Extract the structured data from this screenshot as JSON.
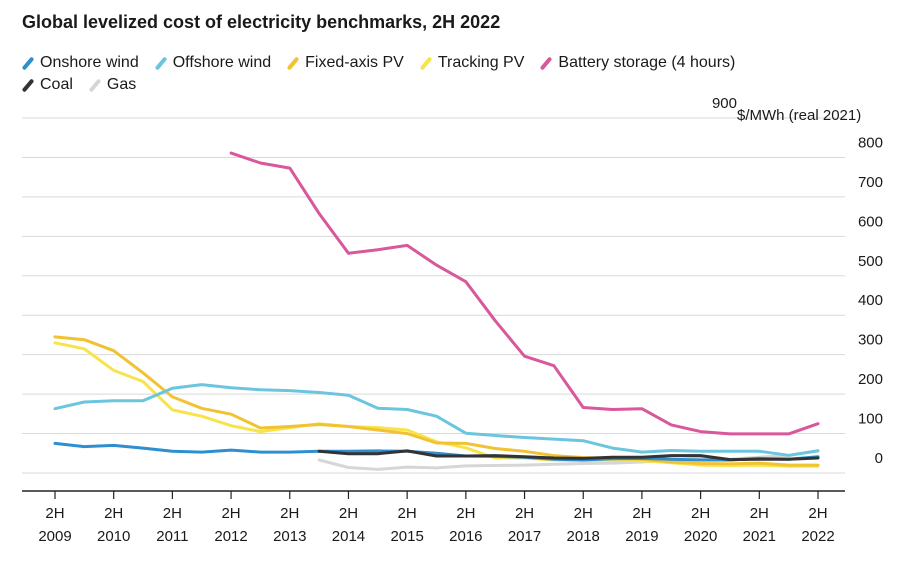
{
  "chart_data": {
    "type": "line",
    "title": "Global levelized cost of electricity benchmarks, 2H 2022",
    "unit_label": "$/MWh (real 2021)",
    "ylim": [
      0,
      900
    ],
    "y_ticks": [
      0,
      100,
      200,
      300,
      400,
      500,
      600,
      700,
      800,
      900
    ],
    "grid": true,
    "legend_position": "top-left",
    "x_tick_labels": [
      {
        "x": 2009,
        "top": "2H",
        "bottom": "2009"
      },
      {
        "x": 2010,
        "top": "2H",
        "bottom": "2010"
      },
      {
        "x": 2011,
        "top": "2H",
        "bottom": "2011"
      },
      {
        "x": 2012,
        "top": "2H",
        "bottom": "2012"
      },
      {
        "x": 2013,
        "top": "2H",
        "bottom": "2013"
      },
      {
        "x": 2014,
        "top": "2H",
        "bottom": "2014"
      },
      {
        "x": 2015,
        "top": "2H",
        "bottom": "2015"
      },
      {
        "x": 2016,
        "top": "2H",
        "bottom": "2016"
      },
      {
        "x": 2017,
        "top": "2H",
        "bottom": "2017"
      },
      {
        "x": 2018,
        "top": "2H",
        "bottom": "2018"
      },
      {
        "x": 2019,
        "top": "2H",
        "bottom": "2019"
      },
      {
        "x": 2020,
        "top": "2H",
        "bottom": "2020"
      },
      {
        "x": 2021,
        "top": "2H",
        "bottom": "2021"
      },
      {
        "x": 2022,
        "top": "2H",
        "bottom": "2022"
      }
    ],
    "xlim": [
      2009,
      2022
    ],
    "series": [
      {
        "name": "Onshore wind",
        "color": "#2e8fd0",
        "x": [
          2009,
          2009.5,
          2010,
          2010.5,
          2011,
          2011.5,
          2012,
          2012.5,
          2013,
          2013.5,
          2014,
          2014.5,
          2015,
          2015.5,
          2016,
          2016.5,
          2017,
          2017.5,
          2018,
          2018.5,
          2019,
          2019.5,
          2020,
          2020.5,
          2021,
          2021.5,
          2022
        ],
        "y": [
          75,
          67,
          70,
          63,
          55,
          53,
          58,
          53,
          53,
          55,
          55,
          56,
          55,
          50,
          43,
          42,
          40,
          35,
          33,
          36,
          37,
          35,
          33,
          33,
          37,
          35,
          41
        ]
      },
      {
        "name": "Offshore wind",
        "color": "#6cc5de",
        "x": [
          2009,
          2009.5,
          2010,
          2010.5,
          2011,
          2011.5,
          2012,
          2012.5,
          2013,
          2013.5,
          2014,
          2014.5,
          2015,
          2015.5,
          2016,
          2016.5,
          2017,
          2017.5,
          2018,
          2018.5,
          2019,
          2019.5,
          2020,
          2020.5,
          2021,
          2021.5,
          2022
        ],
        "y": [
          163,
          180,
          183,
          183,
          215,
          224,
          216,
          211,
          209,
          204,
          197,
          164,
          161,
          144,
          101,
          95,
          90,
          86,
          82,
          63,
          53,
          57,
          55,
          55,
          55,
          45,
          56
        ]
      },
      {
        "name": "Fixed-axis PV",
        "color": "#f1c232",
        "x": [
          2009,
          2009.5,
          2010,
          2010.5,
          2011,
          2011.5,
          2012,
          2012.5,
          2013,
          2013.5,
          2014,
          2014.5,
          2015,
          2015.5,
          2016,
          2016.5,
          2017,
          2017.5,
          2018,
          2018.5,
          2019,
          2019.5,
          2020,
          2020.5,
          2021,
          2021.5,
          2022
        ],
        "y": [
          345,
          338,
          310,
          254,
          193,
          164,
          149,
          114,
          118,
          123,
          118,
          109,
          100,
          76,
          75,
          62,
          55,
          44,
          39,
          37,
          35,
          28,
          24,
          23,
          25,
          20,
          20
        ]
      },
      {
        "name": "Tracking PV",
        "color": "#f7e44a",
        "x": [
          2009,
          2009.5,
          2010,
          2010.5,
          2011,
          2011.5,
          2012,
          2012.5,
          2013,
          2013.5,
          2014,
          2014.5,
          2015,
          2015.5,
          2016,
          2016.5,
          2017,
          2017.5,
          2018,
          2018.5,
          2019,
          2019.5,
          2020,
          2020.5,
          2021,
          2021.5,
          2022
        ],
        "y": [
          330,
          315,
          260,
          232,
          160,
          144,
          120,
          105,
          115,
          125,
          118,
          115,
          109,
          79,
          64,
          38,
          38,
          33,
          32,
          33,
          31,
          26,
          20,
          19,
          20,
          17,
          17
        ]
      },
      {
        "name": "Battery storage (4 hours)",
        "color": "#d9579b",
        "x": [
          2012,
          2012.5,
          2013,
          2013.5,
          2014,
          2014.5,
          2015,
          2015.5,
          2016,
          2016.5,
          2017,
          2017.5,
          2018,
          2018.5,
          2019,
          2019.5,
          2020,
          2020.5,
          2021,
          2021.5,
          2022
        ],
        "y": [
          811,
          786,
          773,
          658,
          557,
          566,
          577,
          527,
          485,
          386,
          296,
          272,
          166,
          161,
          163,
          122,
          105,
          99,
          99,
          99,
          125
        ]
      },
      {
        "name": "Coal",
        "color": "#333333",
        "x": [
          2013.5,
          2014,
          2014.5,
          2015,
          2015.5,
          2016,
          2016.5,
          2017,
          2017.5,
          2018,
          2018.5,
          2019,
          2019.5,
          2020,
          2020.5,
          2021,
          2021.5,
          2022
        ],
        "y": [
          55,
          49,
          49,
          56,
          43,
          43,
          44,
          41,
          38,
          37,
          40,
          40,
          44,
          44,
          34,
          35,
          35,
          38
        ]
      },
      {
        "name": "Gas",
        "color": "#d6d6d6",
        "x": [
          2013.5,
          2014,
          2014.5,
          2015,
          2015.5,
          2016,
          2016.5,
          2017,
          2017.5,
          2018,
          2018.5,
          2019,
          2019.5,
          2020,
          2020.5,
          2021,
          2021.5,
          2022
        ],
        "y": [
          33,
          14,
          9,
          15,
          13,
          18,
          19,
          20,
          22,
          24,
          25,
          28,
          33,
          38,
          35,
          40,
          44,
          57
        ]
      }
    ]
  }
}
